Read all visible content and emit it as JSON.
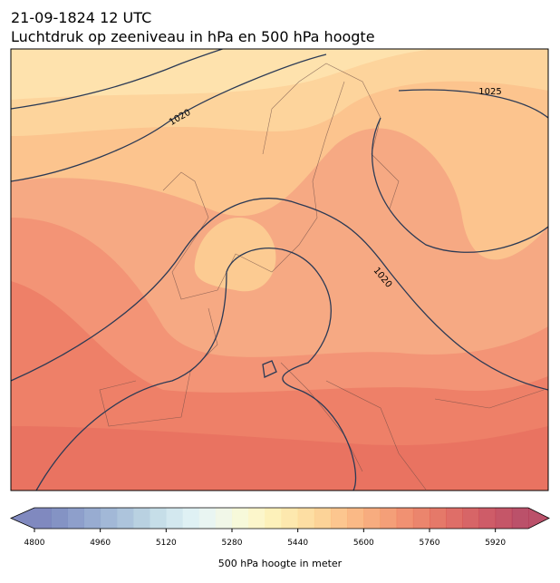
{
  "header": {
    "title": "21-09-1824 12 UTC",
    "subtitle": "Luchtdruk op zeeniveau in hPa en 500 hPa hoogte"
  },
  "map": {
    "isobar_labels": [
      "1020",
      "1025",
      "1020"
    ]
  },
  "colorbar": {
    "lim": [
      4800,
      6000
    ],
    "ticks": [
      4800,
      4960,
      5120,
      5280,
      5440,
      5600,
      5760,
      5920
    ],
    "label": "500 hPa hoogte in meter",
    "colors": [
      "#6a74b4",
      "#6f80ba",
      "#7a8ec2",
      "#869dc9",
      "#92abd0",
      "#9fbad6",
      "#adc9dc",
      "#bcd8e4",
      "#cbe4ec",
      "#d9eef2",
      "#e5f3f0",
      "#eef6e4",
      "#f6f8d3",
      "#fbf5c2",
      "#fdeeae",
      "#fde4a0",
      "#fdd893",
      "#fccb86",
      "#fbbc7b",
      "#f9ad71",
      "#f69d68",
      "#f28e60",
      "#ee7e59",
      "#e87053",
      "#e1624f",
      "#d9554d",
      "#d04a4c",
      "#c6404d",
      "#bb384e",
      "#af3250"
    ]
  }
}
